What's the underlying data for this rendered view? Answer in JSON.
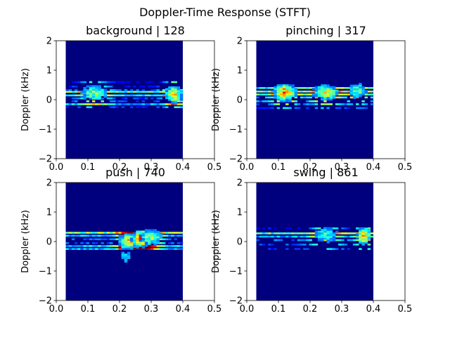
{
  "figure": {
    "suptitle": "Doppler-Time Response (STFT)",
    "colormap": "jet",
    "background_color": "#00007f"
  },
  "chart_data": [
    {
      "type": "heatmap",
      "title": "background | 128",
      "xlabel": "",
      "ylabel": "Doppler (kHz)",
      "xlim": [
        0.0,
        0.5
      ],
      "ylim": [
        -2,
        2
      ],
      "xticks": [
        "0.0",
        "0.1",
        "0.2",
        "0.3",
        "0.4",
        "0.5"
      ],
      "yticks": [
        "−2",
        "−1",
        "0",
        "1",
        "2"
      ],
      "time_extent": [
        0.03,
        0.4
      ],
      "doppler_bands": [
        {
          "y": 0.27,
          "intensity": 0.45,
          "row": "solid"
        },
        {
          "y": 0.15,
          "intensity": 0.35,
          "row": "solid"
        },
        {
          "y": -0.15,
          "intensity": 0.3,
          "row": "solid"
        },
        {
          "y": 0.33,
          "intensity": 0.2,
          "row": "patchy"
        },
        {
          "y": 0.05,
          "intensity": 0.18,
          "row": "patchy"
        },
        {
          "y": -0.05,
          "intensity": 0.18,
          "row": "patchy"
        },
        {
          "y": -0.25,
          "intensity": 0.15,
          "row": "patchy"
        },
        {
          "y": 0.45,
          "intensity": 0.12,
          "row": "patchy"
        },
        {
          "y": 0.6,
          "intensity": 0.1,
          "row": "patchy"
        }
      ],
      "hotspots": [
        {
          "t": 0.12,
          "y": 0.22,
          "intensity": 0.6,
          "spread_t": 0.03
        },
        {
          "t": 0.37,
          "y": 0.18,
          "intensity": 0.8,
          "spread_t": 0.02
        }
      ]
    },
    {
      "type": "heatmap",
      "title": "pinching | 317",
      "xlabel": "",
      "ylabel": "Doppler (kHz)",
      "xlim": [
        0.0,
        0.5
      ],
      "ylim": [
        -2,
        2
      ],
      "xticks": [
        "0.0",
        "0.1",
        "0.2",
        "0.3",
        "0.4",
        "0.5"
      ],
      "yticks": [
        "−2",
        "−1",
        "0",
        "1",
        "2"
      ],
      "time_extent": [
        0.03,
        0.4
      ],
      "doppler_bands": [
        {
          "y": 0.4,
          "intensity": 0.35,
          "row": "solid"
        },
        {
          "y": 0.28,
          "intensity": 0.45,
          "row": "solid"
        },
        {
          "y": 0.18,
          "intensity": 0.4,
          "row": "solid"
        },
        {
          "y": 0.08,
          "intensity": 0.3,
          "row": "patchy"
        },
        {
          "y": -0.05,
          "intensity": 0.25,
          "row": "patchy"
        },
        {
          "y": -0.15,
          "intensity": 0.2,
          "row": "patchy"
        },
        {
          "y": -0.28,
          "intensity": 0.12,
          "row": "patchy"
        }
      ],
      "hotspots": [
        {
          "t": 0.12,
          "y": 0.25,
          "intensity": 0.85,
          "spread_t": 0.025
        },
        {
          "t": 0.25,
          "y": 0.25,
          "intensity": 0.65,
          "spread_t": 0.03
        },
        {
          "t": 0.35,
          "y": 0.3,
          "intensity": 0.55,
          "spread_t": 0.02
        }
      ]
    },
    {
      "type": "heatmap",
      "title": "push | 740",
      "xlabel": "",
      "ylabel": "Doppler (kHz)",
      "xlim": [
        0.0,
        0.5
      ],
      "ylim": [
        -2,
        2
      ],
      "xticks": [
        "0.0",
        "0.1",
        "0.2",
        "0.3",
        "0.4",
        "0.5"
      ],
      "yticks": [
        "−2",
        "−1",
        "0",
        "1",
        "2"
      ],
      "time_extent": [
        0.03,
        0.4
      ],
      "doppler_bands": [
        {
          "y": 0.3,
          "intensity": 0.5,
          "row": "solid"
        },
        {
          "y": 0.2,
          "intensity": 0.3,
          "row": "solid"
        },
        {
          "y": -0.15,
          "intensity": 0.35,
          "row": "solid"
        },
        {
          "y": -0.25,
          "intensity": 0.3,
          "row": "solid"
        },
        {
          "y": 0.08,
          "intensity": 0.2,
          "row": "patchy"
        },
        {
          "y": -0.05,
          "intensity": 0.2,
          "row": "patchy"
        }
      ],
      "hotspots": [
        {
          "t": 0.23,
          "y": 0.0,
          "intensity": 0.75,
          "spread_t": 0.025
        },
        {
          "t": 0.27,
          "y": 0.1,
          "intensity": 0.95,
          "spread_t": 0.02
        },
        {
          "t": 0.3,
          "y": 0.15,
          "intensity": 0.65,
          "spread_t": 0.025
        },
        {
          "t": 0.22,
          "y": -0.5,
          "intensity": 0.4,
          "spread_t": 0.015
        }
      ]
    },
    {
      "type": "heatmap",
      "title": "swing | 861",
      "xlabel": "",
      "ylabel": "Doppler (kHz)",
      "xlim": [
        0.0,
        0.5
      ],
      "ylim": [
        -2,
        2
      ],
      "xticks": [
        "0.0",
        "0.1",
        "0.2",
        "0.3",
        "0.4",
        "0.5"
      ],
      "yticks": [
        "−2",
        "−1",
        "0",
        "1",
        "2"
      ],
      "time_extent": [
        0.03,
        0.4
      ],
      "doppler_bands": [
        {
          "y": 0.28,
          "intensity": 0.45,
          "row": "solid"
        },
        {
          "y": 0.17,
          "intensity": 0.3,
          "row": "solid"
        },
        {
          "y": 0.05,
          "intensity": 0.25,
          "row": "patchy"
        },
        {
          "y": -0.1,
          "intensity": 0.2,
          "row": "patchy"
        },
        {
          "y": -0.25,
          "intensity": 0.15,
          "row": "patchy"
        },
        {
          "y": 0.45,
          "intensity": 0.12,
          "row": "patchy"
        }
      ],
      "hotspots": [
        {
          "t": 0.25,
          "y": 0.22,
          "intensity": 0.5,
          "spread_t": 0.03
        },
        {
          "t": 0.37,
          "y": 0.2,
          "intensity": 0.85,
          "spread_t": 0.015
        }
      ]
    }
  ]
}
